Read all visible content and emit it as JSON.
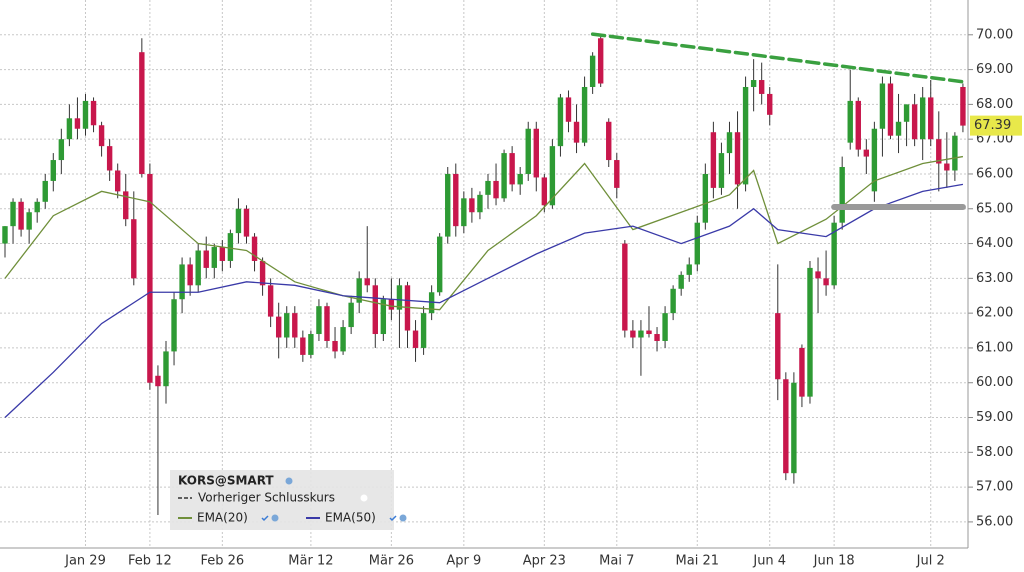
{
  "chart_data": {
    "type": "candlestick",
    "legend_title": "KORS@SMART",
    "previous_close_label": "Vorheriger Schlusskurs",
    "categories": [
      null,
      null,
      null,
      null,
      null,
      null,
      null,
      null,
      null,
      null,
      "Jan 29",
      null,
      null,
      null,
      null,
      null,
      null,
      null,
      "Feb 12",
      null,
      null,
      null,
      null,
      null,
      null,
      null,
      null,
      "Feb 26",
      null,
      null,
      null,
      null,
      null,
      null,
      null,
      null,
      null,
      null,
      "Mär 12",
      null,
      null,
      null,
      null,
      null,
      null,
      null,
      null,
      null,
      "Mär 26",
      null,
      null,
      null,
      null,
      null,
      null,
      null,
      null,
      "Apr 9",
      null,
      null,
      null,
      null,
      null,
      null,
      null,
      null,
      null,
      "Apr 23",
      null,
      null,
      null,
      null,
      null,
      null,
      null,
      null,
      "Mai 7",
      null,
      null,
      null,
      null,
      null,
      null,
      null,
      null,
      null,
      "Mai 21",
      null,
      null,
      null,
      null,
      null,
      null,
      null,
      null,
      "Jun 4",
      null,
      null,
      null,
      null,
      null,
      null,
      null,
      "Jun 18",
      null,
      null,
      null,
      null,
      null,
      null,
      null,
      null,
      null,
      null,
      null,
      "Jul 2",
      null,
      null,
      null,
      null
    ],
    "open": [
      64.0,
      64.5,
      65.2,
      64.4,
      64.9,
      65.2,
      65.8,
      66.4,
      67.0,
      67.6,
      67.3,
      68.1,
      67.4,
      66.8,
      66.1,
      65.5,
      64.7,
      69.5,
      66.0,
      60.2,
      59.9,
      60.9,
      62.4,
      63.4,
      62.8,
      63.8,
      63.3,
      63.9,
      63.5,
      64.3,
      65.0,
      64.2,
      63.5,
      62.8,
      61.9,
      61.3,
      62.0,
      61.3,
      60.8,
      61.4,
      62.2,
      61.2,
      60.9,
      61.6,
      62.3,
      63.0,
      62.8,
      61.4,
      62.4,
      62.1,
      62.8,
      61.5,
      61.0,
      62.0,
      62.6,
      64.2,
      66.0,
      64.5,
      65.3,
      64.9,
      65.4,
      65.8,
      65.3,
      66.6,
      65.7,
      66.0,
      67.3,
      65.9,
      65.1,
      66.8,
      68.2,
      67.5,
      66.9,
      68.5,
      69.9,
      67.5,
      66.4,
      64.0,
      61.5,
      61.3,
      61.5,
      61.4,
      61.2,
      62.0,
      62.7,
      63.1,
      63.4,
      64.6,
      67.2,
      65.6,
      66.6,
      67.2,
      65.7,
      68.5,
      68.7,
      68.3,
      62.0,
      60.1,
      57.4,
      61.0,
      59.6,
      63.2,
      63.0,
      62.8,
      64.6,
      66.9,
      68.1,
      66.7,
      65.5,
      67.3,
      68.6,
      67.1,
      67.5,
      68.0,
      67.0,
      68.2,
      67.0,
      66.3,
      66.1,
      68.5
    ],
    "high": [
      64.5,
      65.3,
      65.3,
      65.0,
      65.3,
      66.0,
      66.6,
      67.3,
      68.0,
      68.2,
      68.3,
      68.2,
      67.5,
      67.0,
      66.3,
      66.0,
      65.5,
      69.9,
      66.3,
      60.5,
      61.2,
      62.6,
      63.6,
      63.6,
      64.0,
      64.2,
      64.0,
      64.1,
      64.4,
      65.3,
      65.1,
      64.3,
      63.6,
      63.0,
      62.3,
      62.2,
      62.2,
      61.5,
      61.5,
      62.4,
      62.3,
      61.6,
      61.8,
      62.5,
      63.2,
      64.5,
      63.0,
      62.5,
      63.0,
      63.0,
      62.9,
      61.8,
      62.2,
      62.8,
      64.3,
      66.2,
      66.3,
      65.5,
      65.6,
      65.5,
      66.0,
      66.3,
      66.7,
      66.8,
      66.2,
      67.5,
      67.5,
      66.0,
      67.0,
      68.3,
      68.4,
      68.0,
      68.8,
      69.5,
      70.0,
      67.6,
      66.6,
      64.1,
      61.8,
      61.8,
      62.2,
      61.6,
      62.2,
      62.8,
      63.2,
      63.6,
      64.8,
      66.3,
      67.5,
      66.9,
      67.5,
      67.8,
      68.8,
      69.3,
      69.2,
      68.5,
      63.4,
      60.3,
      60.3,
      61.1,
      63.5,
      63.6,
      63.8,
      64.8,
      66.5,
      69.0,
      68.2,
      67.0,
      67.5,
      68.8,
      68.8,
      68.3,
      68.0,
      68.3,
      68.5,
      68.7,
      67.8,
      67.2,
      67.2,
      68.6
    ],
    "low": [
      63.6,
      64.0,
      64.2,
      64.0,
      64.6,
      65.0,
      65.5,
      66.0,
      66.8,
      67.0,
      67.1,
      67.2,
      66.5,
      65.8,
      65.3,
      64.5,
      62.8,
      65.9,
      59.8,
      56.2,
      59.4,
      60.5,
      62.0,
      62.5,
      62.6,
      63.0,
      63.0,
      63.2,
      63.3,
      64.0,
      64.0,
      63.2,
      62.5,
      61.6,
      60.7,
      61.0,
      61.0,
      60.6,
      60.7,
      61.2,
      61.0,
      60.7,
      60.8,
      61.4,
      62.0,
      62.6,
      61.0,
      61.2,
      61.8,
      61.0,
      61.0,
      60.6,
      60.8,
      61.8,
      62.5,
      64.0,
      64.2,
      64.3,
      64.6,
      64.7,
      65.0,
      65.1,
      65.2,
      65.5,
      65.4,
      65.8,
      65.5,
      64.9,
      65.0,
      66.5,
      67.2,
      66.6,
      66.8,
      68.3,
      68.5,
      66.2,
      65.3,
      61.3,
      61.0,
      60.2,
      61.3,
      60.9,
      61.0,
      61.8,
      62.5,
      62.9,
      63.2,
      64.4,
      65.3,
      65.4,
      66.0,
      65.0,
      65.5,
      67.8,
      68.0,
      67.4,
      59.5,
      57.2,
      57.1,
      59.3,
      59.4,
      62.0,
      62.5,
      62.7,
      64.4,
      66.7,
      66.5,
      66.0,
      65.2,
      66.5,
      67.0,
      66.6,
      66.8,
      66.8,
      66.4,
      66.8,
      65.5,
      65.6,
      65.8,
      67.2
    ],
    "close": [
      64.5,
      65.2,
      64.4,
      64.9,
      65.2,
      65.8,
      66.4,
      67.0,
      67.6,
      67.3,
      68.1,
      67.4,
      66.8,
      66.1,
      65.5,
      64.7,
      63.0,
      66.0,
      60.0,
      59.9,
      60.9,
      62.4,
      63.4,
      62.8,
      63.8,
      63.3,
      63.9,
      63.5,
      64.3,
      65.0,
      64.2,
      63.5,
      62.8,
      61.9,
      61.3,
      62.0,
      61.3,
      60.8,
      61.4,
      62.2,
      61.2,
      60.9,
      61.6,
      62.3,
      63.0,
      62.8,
      61.4,
      62.4,
      62.1,
      62.8,
      61.5,
      61.0,
      62.0,
      62.6,
      64.2,
      66.0,
      64.5,
      65.3,
      64.9,
      65.4,
      65.8,
      65.3,
      66.6,
      65.7,
      66.0,
      67.3,
      65.9,
      65.1,
      66.8,
      68.2,
      67.5,
      66.9,
      68.5,
      69.4,
      68.6,
      66.4,
      65.6,
      61.5,
      61.3,
      61.5,
      61.4,
      61.2,
      62.0,
      62.7,
      63.1,
      63.4,
      64.6,
      66.0,
      65.6,
      66.6,
      67.2,
      65.7,
      68.5,
      68.7,
      68.3,
      67.7,
      60.1,
      57.4,
      60.0,
      59.6,
      63.3,
      63.0,
      62.8,
      64.6,
      66.2,
      68.1,
      66.7,
      66.5,
      67.3,
      68.6,
      67.1,
      67.5,
      68.0,
      67.0,
      68.2,
      67.0,
      66.3,
      66.1,
      67.1,
      67.39
    ],
    "up_color": "#2e9a34",
    "down_color": "#c8174c",
    "series": [
      {
        "name": "EMA(20)",
        "color": "#6f8f3a",
        "x": [
          0,
          6,
          12,
          18,
          24,
          30,
          36,
          42,
          48,
          54,
          60,
          66,
          72,
          78,
          84,
          90,
          93,
          96,
          102,
          108,
          114,
          119
        ],
        "values": [
          63.0,
          64.8,
          65.5,
          65.2,
          64.0,
          63.8,
          62.9,
          62.5,
          62.2,
          62.1,
          63.8,
          64.8,
          66.3,
          64.4,
          64.9,
          65.4,
          66.1,
          64.0,
          64.7,
          65.8,
          66.3,
          66.5
        ]
      },
      {
        "name": "EMA(50)",
        "color": "#3a3aa8",
        "x": [
          0,
          6,
          12,
          18,
          24,
          30,
          36,
          42,
          48,
          54,
          60,
          66,
          72,
          78,
          84,
          90,
          93,
          96,
          102,
          108,
          114,
          119
        ],
        "values": [
          59.0,
          60.3,
          61.7,
          62.6,
          62.6,
          62.9,
          62.8,
          62.5,
          62.4,
          62.3,
          63.0,
          63.7,
          64.3,
          64.5,
          64.0,
          64.5,
          65.0,
          64.4,
          64.2,
          65.0,
          65.5,
          65.7
        ]
      }
    ],
    "annotations": [
      {
        "color": "#3aa040",
        "dashed": true,
        "x": [
          73,
          119
        ],
        "y": [
          70.02,
          68.65
        ]
      },
      {
        "color": "#999999",
        "dashed": false,
        "x": [
          103,
          119
        ],
        "y": [
          65.05,
          65.05
        ]
      }
    ],
    "xlim": [
      -0.62,
      119.63
    ],
    "ylim": [
      55.25,
      71.0
    ],
    "yticks": [
      {
        "value": 56,
        "label": "56.00"
      },
      {
        "value": 57,
        "label": "57.00"
      },
      {
        "value": 58,
        "label": "58.00"
      },
      {
        "value": 59,
        "label": "59.00"
      },
      {
        "value": 60,
        "label": "60.00"
      },
      {
        "value": 61,
        "label": "61.00"
      },
      {
        "value": 62,
        "label": "62.00"
      },
      {
        "value": 63,
        "label": "63.00"
      },
      {
        "value": 64,
        "label": "64.00"
      },
      {
        "value": 65,
        "label": "65.00"
      },
      {
        "value": 66,
        "label": "66.00"
      },
      {
        "value": 67,
        "label": "67.00"
      },
      {
        "value": 68,
        "label": "68.00"
      },
      {
        "value": 69,
        "label": "69.00"
      },
      {
        "value": 70,
        "label": "70.00"
      }
    ],
    "last_price_color": "#e8e84a",
    "grid": true
  }
}
